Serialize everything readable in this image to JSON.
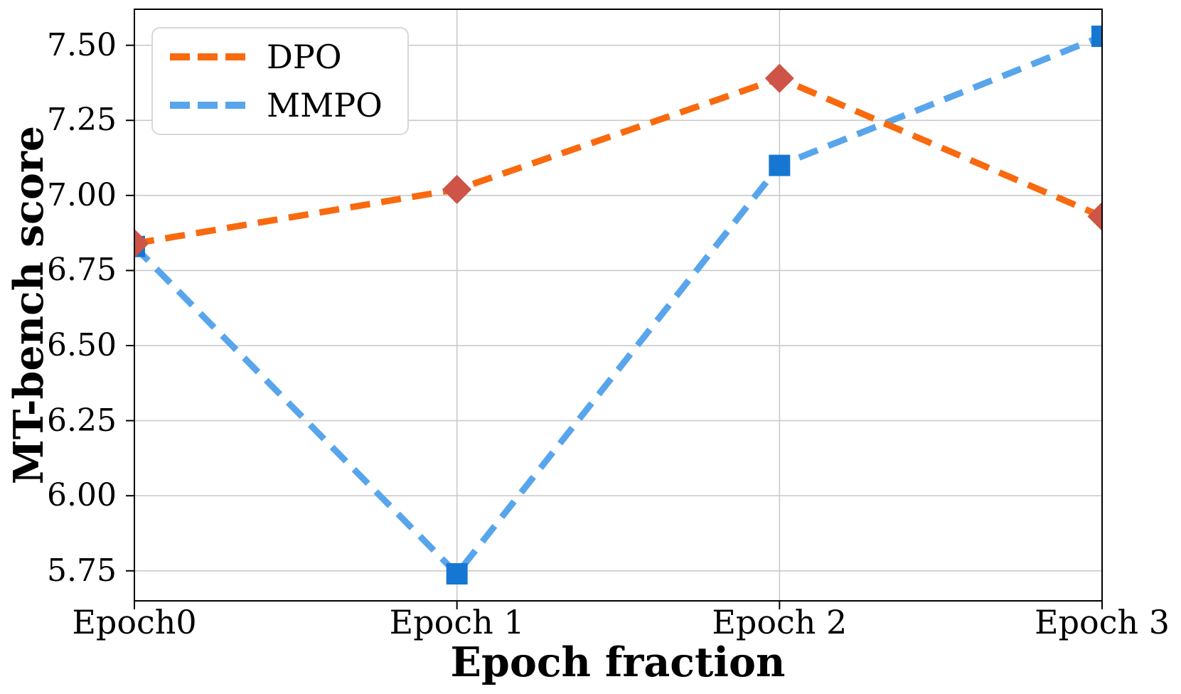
{
  "chart_data": {
    "type": "line",
    "title": "",
    "xlabel": "Epoch fraction",
    "ylabel": "MT-bench score",
    "categories": [
      "Epoch0",
      "Epoch 1",
      "Epoch 2",
      "Epoch 3"
    ],
    "series": [
      {
        "name": "DPO",
        "values": [
          6.84,
          7.02,
          7.39,
          6.93
        ],
        "line_color": "#f9690e",
        "marker_color": "#cd5446",
        "marker": "diamond",
        "line_style": "dashed"
      },
      {
        "name": "MMPO",
        "values": [
          6.83,
          5.74,
          7.1,
          7.53
        ],
        "line_color": "#58a5ec",
        "marker_color": "#1677d2",
        "marker": "square",
        "line_style": "dashed"
      }
    ],
    "ytick_labels": [
      "5.75",
      "6.00",
      "6.25",
      "6.50",
      "6.75",
      "7.00",
      "7.25",
      "7.50"
    ],
    "ylim": [
      5.65,
      7.62
    ],
    "grid": true,
    "legend_position": "upper-left",
    "colors": {
      "grid": "#cacaca",
      "spine": "#000000",
      "text": "#000000",
      "legend_border": "#d8d8d8",
      "background": "#ffffff"
    }
  }
}
